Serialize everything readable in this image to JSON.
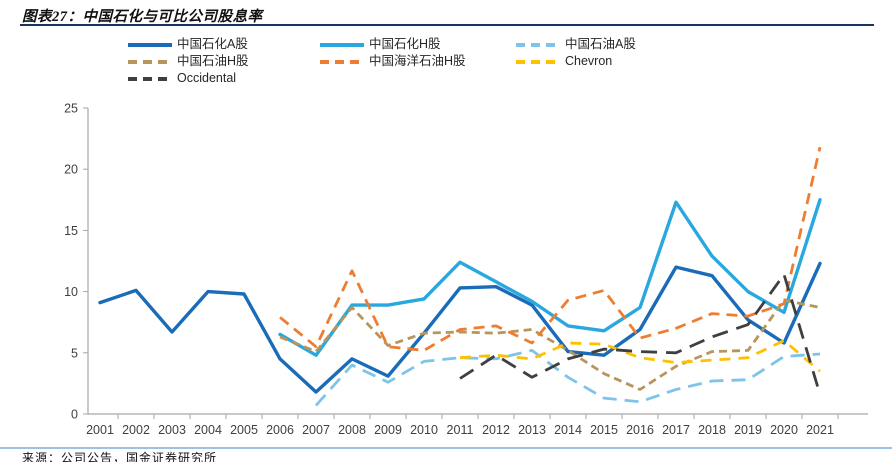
{
  "header": {
    "title": "图表27：中国石化与可比公司股息率"
  },
  "footer": {
    "source": "来源：公司公告，国金证券研究所"
  },
  "colors": {
    "title_rule": "#17375e",
    "footer_rule": "#9cc2e5",
    "axis": "#a6a6a6",
    "tick_label": "#404040"
  },
  "chart_data": {
    "type": "line",
    "title": "图表27：中国石化与可比公司股息率",
    "xlabel": "",
    "ylabel": "",
    "ylim": [
      0,
      25
    ],
    "y_ticks": [
      0,
      5,
      10,
      15,
      20,
      25
    ],
    "grid": false,
    "legend_position": "top",
    "x": [
      2001,
      2002,
      2003,
      2004,
      2005,
      2006,
      2007,
      2008,
      2009,
      2010,
      2011,
      2012,
      2013,
      2014,
      2015,
      2016,
      2017,
      2018,
      2019,
      2020,
      2021
    ],
    "series": [
      {
        "name": "中国石化A股",
        "color": "#1a6bb8",
        "style": "solid",
        "dash": "",
        "values": [
          9.1,
          10.1,
          6.7,
          10.0,
          9.8,
          4.5,
          1.8,
          4.5,
          3.1,
          6.6,
          10.3,
          10.4,
          8.9,
          5.1,
          4.8,
          6.9,
          12.0,
          11.3,
          7.7,
          5.8,
          12.3
        ]
      },
      {
        "name": "中国石化H股",
        "color": "#29a8e0",
        "style": "solid",
        "dash": "",
        "values": [
          null,
          null,
          null,
          null,
          null,
          6.5,
          4.8,
          8.9,
          8.9,
          9.4,
          12.4,
          10.8,
          9.2,
          7.2,
          6.8,
          8.7,
          17.3,
          12.9,
          10.0,
          8.3,
          17.5
        ]
      },
      {
        "name": "中国石油A股",
        "color": "#7ec3ea",
        "style": "dashed",
        "dash": "14 8",
        "values": [
          null,
          null,
          null,
          null,
          null,
          null,
          0.7,
          4.0,
          2.6,
          4.3,
          4.6,
          4.5,
          5.2,
          3.0,
          1.3,
          1.0,
          2.0,
          2.7,
          2.8,
          4.7,
          4.9
        ]
      },
      {
        "name": "中国石油H股",
        "color": "#b8955a",
        "style": "dashed",
        "dash": "8 5",
        "values": [
          null,
          null,
          null,
          null,
          null,
          6.3,
          5.1,
          8.7,
          5.6,
          6.6,
          6.7,
          6.6,
          6.9,
          5.2,
          3.3,
          2.0,
          3.9,
          5.1,
          5.2,
          9.3,
          8.7
        ]
      },
      {
        "name": "中国海洋石油H股",
        "color": "#ed7d31",
        "style": "dashed",
        "dash": "11 7",
        "values": [
          null,
          null,
          null,
          null,
          null,
          7.9,
          5.5,
          11.7,
          5.5,
          5.2,
          6.9,
          7.2,
          5.8,
          9.3,
          10.1,
          6.2,
          7.0,
          8.2,
          8.0,
          9.0,
          21.8
        ]
      },
      {
        "name": "Chevron",
        "color": "#ffc000",
        "style": "dashed",
        "dash": "11 8",
        "values": [
          null,
          null,
          null,
          null,
          null,
          null,
          null,
          null,
          null,
          null,
          4.6,
          4.8,
          4.5,
          5.8,
          5.7,
          4.6,
          4.2,
          4.4,
          4.6,
          6.0,
          3.5
        ]
      },
      {
        "name": "Occidental",
        "color": "#3f3f3f",
        "style": "dashed",
        "dash": "16 9",
        "values": [
          null,
          null,
          null,
          null,
          null,
          null,
          null,
          null,
          null,
          null,
          2.9,
          4.8,
          3.0,
          4.5,
          5.3,
          5.1,
          5.0,
          6.3,
          7.3,
          11.4,
          1.6
        ]
      }
    ]
  }
}
